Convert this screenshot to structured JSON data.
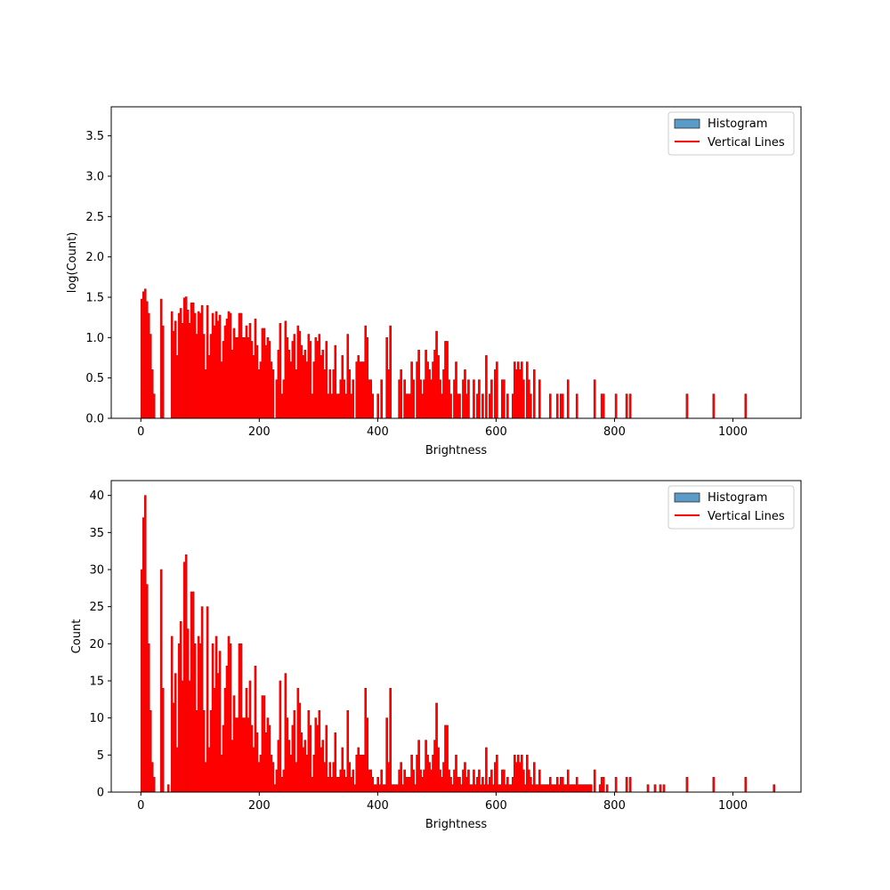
{
  "colors": {
    "bar_fill": "#5b9bc8",
    "bar_edge": "#2b2b2b",
    "vline": "#ff0000",
    "axis": "#000000",
    "legend_border": "#cccccc"
  },
  "chart_data": [
    {
      "type": "bar",
      "scale": "log",
      "xlabel": "Brightness",
      "ylabel": "log(Count)",
      "xlim": [
        -50,
        1115
      ],
      "ylim": [
        0,
        3.86
      ],
      "xticks": [
        0,
        200,
        400,
        600,
        800,
        1000
      ],
      "yticks": [
        0.0,
        0.5,
        1.0,
        1.5,
        2.0,
        2.5,
        3.0,
        3.5
      ],
      "ytick_labels": [
        "0.0",
        "0.5",
        "1.0",
        "1.5",
        "2.0",
        "2.5",
        "3.0",
        "3.5"
      ],
      "grid": false,
      "legend": {
        "placement": "top-right",
        "entries": [
          "Histogram",
          "Vertical Lines"
        ]
      }
    },
    {
      "type": "bar",
      "scale": "linear",
      "xlabel": "Brightness",
      "ylabel": "Count",
      "xlim": [
        -50,
        1115
      ],
      "ylim": [
        0,
        42
      ],
      "xticks": [
        0,
        200,
        400,
        600,
        800,
        1000
      ],
      "yticks": [
        0,
        5,
        10,
        15,
        20,
        25,
        30,
        35,
        40
      ],
      "ytick_labels": [
        "0",
        "5",
        "10",
        "15",
        "20",
        "25",
        "30",
        "35",
        "40"
      ],
      "grid": false,
      "legend": {
        "placement": "top-right",
        "entries": [
          "Histogram",
          "Vertical Lines"
        ]
      }
    }
  ],
  "histogram": {
    "bin_width": 3,
    "bins": [
      [
        0,
        30
      ],
      [
        3,
        37
      ],
      [
        6,
        40
      ],
      [
        9,
        28
      ],
      [
        12,
        20
      ],
      [
        15,
        11
      ],
      [
        18,
        4
      ],
      [
        21,
        2
      ],
      [
        33,
        30
      ],
      [
        36,
        14
      ],
      [
        45,
        1
      ],
      [
        51,
        21
      ],
      [
        54,
        12
      ],
      [
        57,
        16
      ],
      [
        60,
        6
      ],
      [
        63,
        20
      ],
      [
        66,
        23
      ],
      [
        69,
        15
      ],
      [
        72,
        31
      ],
      [
        75,
        32
      ],
      [
        78,
        22
      ],
      [
        81,
        15
      ],
      [
        84,
        27
      ],
      [
        87,
        27
      ],
      [
        90,
        20
      ],
      [
        93,
        11
      ],
      [
        96,
        21
      ],
      [
        99,
        20
      ],
      [
        102,
        25
      ],
      [
        105,
        11
      ],
      [
        108,
        4
      ],
      [
        111,
        25
      ],
      [
        114,
        6
      ],
      [
        117,
        11
      ],
      [
        120,
        20
      ],
      [
        123,
        14
      ],
      [
        126,
        21
      ],
      [
        129,
        16
      ],
      [
        132,
        19
      ],
      [
        135,
        5
      ],
      [
        138,
        9
      ],
      [
        141,
        14
      ],
      [
        144,
        17
      ],
      [
        147,
        21
      ],
      [
        150,
        20
      ],
      [
        153,
        7
      ],
      [
        156,
        13
      ],
      [
        159,
        10
      ],
      [
        162,
        10
      ],
      [
        165,
        20
      ],
      [
        168,
        20
      ],
      [
        171,
        10
      ],
      [
        174,
        10
      ],
      [
        177,
        14
      ],
      [
        180,
        10
      ],
      [
        183,
        15
      ],
      [
        186,
        9
      ],
      [
        189,
        6
      ],
      [
        192,
        17
      ],
      [
        195,
        8
      ],
      [
        198,
        4
      ],
      [
        201,
        5
      ],
      [
        204,
        13
      ],
      [
        207,
        13
      ],
      [
        210,
        8
      ],
      [
        213,
        10
      ],
      [
        216,
        9
      ],
      [
        219,
        5
      ],
      [
        222,
        4
      ],
      [
        225,
        1
      ],
      [
        228,
        3
      ],
      [
        231,
        7
      ],
      [
        234,
        15
      ],
      [
        237,
        2
      ],
      [
        240,
        3
      ],
      [
        243,
        16
      ],
      [
        246,
        10
      ],
      [
        249,
        7
      ],
      [
        252,
        5
      ],
      [
        255,
        9
      ],
      [
        258,
        11
      ],
      [
        261,
        4
      ],
      [
        264,
        14
      ],
      [
        267,
        12
      ],
      [
        270,
        8
      ],
      [
        273,
        6
      ],
      [
        276,
        7
      ],
      [
        279,
        5
      ],
      [
        282,
        11
      ],
      [
        285,
        9
      ],
      [
        288,
        2
      ],
      [
        291,
        5
      ],
      [
        294,
        10
      ],
      [
        297,
        9
      ],
      [
        300,
        11
      ],
      [
        303,
        6
      ],
      [
        306,
        7
      ],
      [
        309,
        4
      ],
      [
        312,
        9
      ],
      [
        315,
        2
      ],
      [
        318,
        4
      ],
      [
        321,
        2
      ],
      [
        324,
        4
      ],
      [
        327,
        8
      ],
      [
        330,
        2
      ],
      [
        333,
        2
      ],
      [
        336,
        3
      ],
      [
        339,
        6
      ],
      [
        342,
        3
      ],
      [
        345,
        2
      ],
      [
        348,
        11
      ],
      [
        351,
        4
      ],
      [
        354,
        2
      ],
      [
        357,
        3
      ],
      [
        360,
        1
      ],
      [
        363,
        5
      ],
      [
        366,
        6
      ],
      [
        369,
        5
      ],
      [
        372,
        5
      ],
      [
        375,
        5
      ],
      [
        378,
        14
      ],
      [
        381,
        10
      ],
      [
        384,
        3
      ],
      [
        387,
        3
      ],
      [
        390,
        2
      ],
      [
        393,
        1
      ],
      [
        396,
        1
      ],
      [
        399,
        2
      ],
      [
        402,
        1
      ],
      [
        405,
        3
      ],
      [
        408,
        1
      ],
      [
        411,
        1
      ],
      [
        414,
        10
      ],
      [
        417,
        4
      ],
      [
        420,
        14
      ],
      [
        423,
        1
      ],
      [
        426,
        1
      ],
      [
        429,
        1
      ],
      [
        432,
        1
      ],
      [
        435,
        3
      ],
      [
        438,
        4
      ],
      [
        441,
        1
      ],
      [
        444,
        3
      ],
      [
        447,
        2
      ],
      [
        450,
        2
      ],
      [
        453,
        2
      ],
      [
        456,
        5
      ],
      [
        459,
        3
      ],
      [
        462,
        1
      ],
      [
        465,
        5
      ],
      [
        468,
        7
      ],
      [
        471,
        3
      ],
      [
        474,
        2
      ],
      [
        477,
        3
      ],
      [
        480,
        7
      ],
      [
        483,
        5
      ],
      [
        486,
        4
      ],
      [
        489,
        3
      ],
      [
        492,
        5
      ],
      [
        495,
        7
      ],
      [
        498,
        12
      ],
      [
        501,
        6
      ],
      [
        504,
        3
      ],
      [
        507,
        2
      ],
      [
        510,
        4
      ],
      [
        513,
        9
      ],
      [
        516,
        9
      ],
      [
        519,
        3
      ],
      [
        522,
        2
      ],
      [
        525,
        1
      ],
      [
        528,
        3
      ],
      [
        531,
        5
      ],
      [
        534,
        2
      ],
      [
        537,
        2
      ],
      [
        540,
        1
      ],
      [
        543,
        3
      ],
      [
        546,
        4
      ],
      [
        549,
        2
      ],
      [
        552,
        3
      ],
      [
        555,
        1
      ],
      [
        558,
        1
      ],
      [
        561,
        3
      ],
      [
        564,
        1
      ],
      [
        567,
        2
      ],
      [
        570,
        3
      ],
      [
        573,
        1
      ],
      [
        576,
        2
      ],
      [
        579,
        1
      ],
      [
        582,
        6
      ],
      [
        585,
        1
      ],
      [
        588,
        2
      ],
      [
        591,
        3
      ],
      [
        594,
        1
      ],
      [
        597,
        4
      ],
      [
        600,
        5
      ],
      [
        603,
        1
      ],
      [
        606,
        1
      ],
      [
        609,
        3
      ],
      [
        612,
        3
      ],
      [
        615,
        1
      ],
      [
        618,
        2
      ],
      [
        621,
        1
      ],
      [
        624,
        1
      ],
      [
        627,
        2
      ],
      [
        630,
        5
      ],
      [
        633,
        4
      ],
      [
        636,
        5
      ],
      [
        639,
        4
      ],
      [
        642,
        5
      ],
      [
        645,
        3
      ],
      [
        648,
        1
      ],
      [
        651,
        5
      ],
      [
        654,
        3
      ],
      [
        657,
        2
      ],
      [
        660,
        1
      ],
      [
        663,
        4
      ],
      [
        666,
        1
      ],
      [
        669,
        1
      ],
      [
        672,
        3
      ],
      [
        675,
        1
      ],
      [
        678,
        1
      ],
      [
        681,
        1
      ],
      [
        684,
        1
      ],
      [
        687,
        1
      ],
      [
        690,
        2
      ],
      [
        693,
        1
      ],
      [
        696,
        1
      ],
      [
        699,
        1
      ],
      [
        702,
        2
      ],
      [
        705,
        1
      ],
      [
        708,
        2
      ],
      [
        711,
        2
      ],
      [
        714,
        1
      ],
      [
        717,
        1
      ],
      [
        720,
        3
      ],
      [
        723,
        1
      ],
      [
        726,
        1
      ],
      [
        729,
        1
      ],
      [
        732,
        1
      ],
      [
        735,
        2
      ],
      [
        738,
        1
      ],
      [
        741,
        1
      ],
      [
        744,
        1
      ],
      [
        747,
        1
      ],
      [
        750,
        1
      ],
      [
        753,
        1
      ],
      [
        756,
        1
      ],
      [
        759,
        1
      ],
      [
        765,
        3
      ],
      [
        774,
        1
      ],
      [
        777,
        2
      ],
      [
        780,
        2
      ],
      [
        786,
        1
      ],
      [
        801,
        2
      ],
      [
        819,
        2
      ],
      [
        825,
        2
      ],
      [
        855,
        1
      ],
      [
        867,
        1
      ],
      [
        876,
        1
      ],
      [
        882,
        1
      ],
      [
        921,
        2
      ],
      [
        966,
        2
      ],
      [
        1020,
        2
      ],
      [
        1068,
        1
      ]
    ]
  }
}
